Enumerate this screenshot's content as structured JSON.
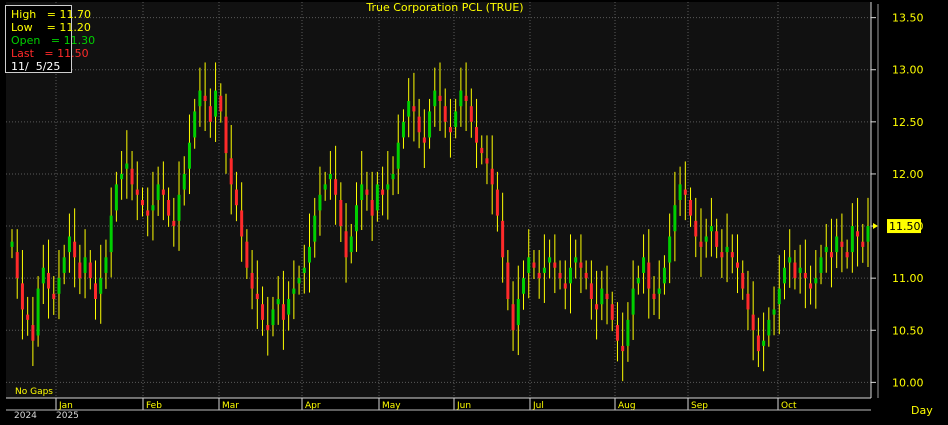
{
  "title": "True Corporation PCL (TRUE)",
  "info": {
    "high": "High   = 11.70",
    "low": "Low    = 11.20",
    "open": "Open   = 11.30",
    "last": "Last   = 11.50",
    "date": "11/  5/25"
  },
  "footer_note": "No  Gaps",
  "timeframe": "Day",
  "colors": {
    "up": "#00d000",
    "down": "#ff2a2a",
    "text": "#ffff00",
    "grid": "#5a5a5a",
    "background": "#111111"
  },
  "chart_data": {
    "type": "bar",
    "style": "ohlc-bars",
    "title": "True Corporation PCL (TRUE)",
    "ylim": [
      9.85,
      13.65
    ],
    "yticks": [
      "13.50",
      "13.00",
      "12.50",
      "12.00",
      "11.50",
      "11.00",
      "10.50",
      "10.00"
    ],
    "last_price_label": "11.50",
    "last_price": 11.5,
    "x_labels": [
      "Jan",
      "Feb",
      "Mar",
      "Apr",
      "May",
      "Jun",
      "Jul",
      "Aug",
      "Sep",
      "Oct"
    ],
    "year_labels": [
      "2024",
      "2025"
    ],
    "closes": [
      11.3,
      11.0,
      10.7,
      10.6,
      10.4,
      10.9,
      11.1,
      10.9,
      10.8,
      11.0,
      11.2,
      11.4,
      11.2,
      11.0,
      11.2,
      11.0,
      10.8,
      11.0,
      11.2,
      11.6,
      11.9,
      12.0,
      12.1,
      11.9,
      11.8,
      11.7,
      11.6,
      11.7,
      11.9,
      11.8,
      11.6,
      11.5,
      11.8,
      12.0,
      12.3,
      12.6,
      12.8,
      12.7,
      12.5,
      12.8,
      12.6,
      12.2,
      11.9,
      11.7,
      11.4,
      11.1,
      10.9,
      10.8,
      10.6,
      10.5,
      10.7,
      10.8,
      10.6,
      10.8,
      10.9,
      11.0,
      11.1,
      11.3,
      11.6,
      11.8,
      11.9,
      12.0,
      11.8,
      11.5,
      11.2,
      11.4,
      11.7,
      11.9,
      11.8,
      11.6,
      11.9,
      11.8,
      11.9,
      12.0,
      12.3,
      12.5,
      12.7,
      12.6,
      12.4,
      12.3,
      12.6,
      12.8,
      12.7,
      12.5,
      12.4,
      12.6,
      12.8,
      12.7,
      12.5,
      12.3,
      12.2,
      12.1,
      11.9,
      11.6,
      11.2,
      10.8,
      10.5,
      10.8,
      11.0,
      11.2,
      11.1,
      11.0,
      11.1,
      11.2,
      11.1,
      11.0,
      10.9,
      11.1,
      11.2,
      11.1,
      11.0,
      10.8,
      10.7,
      10.9,
      10.8,
      10.6,
      10.4,
      10.3,
      10.6,
      10.9,
      11.0,
      11.2,
      10.9,
      10.8,
      10.9,
      11.1,
      11.4,
      11.7,
      11.9,
      11.8,
      11.6,
      11.4,
      11.3,
      11.4,
      11.5,
      11.3,
      11.2,
      11.3,
      11.2,
      11.1,
      10.9,
      10.7,
      10.5,
      10.3,
      10.4,
      10.6,
      10.7,
      10.9,
      11.1,
      11.2,
      11.0,
      11.1,
      11.0,
      10.9,
      11.0,
      11.2,
      11.3,
      11.2,
      11.4,
      11.3,
      11.2,
      11.5,
      11.4,
      11.3,
      11.5
    ]
  }
}
